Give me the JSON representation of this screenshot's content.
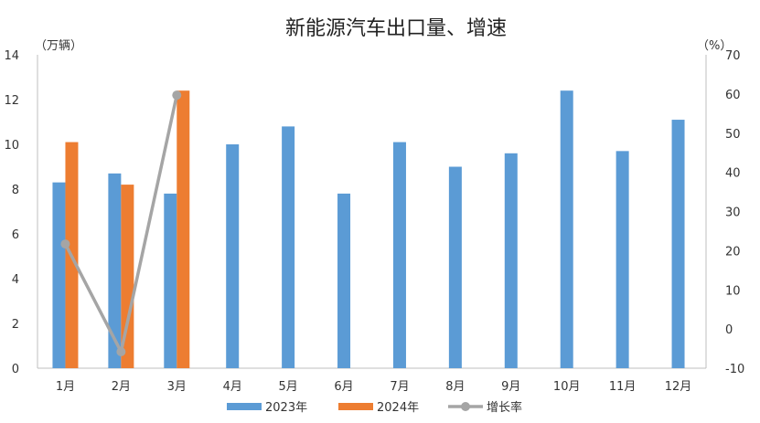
{
  "chart_data": {
    "type": "bar",
    "title": "新能源汽车出口量、增速",
    "y_left_unit": "（万辆）",
    "y_right_unit": "（%）",
    "categories": [
      "1月",
      "2月",
      "3月",
      "4月",
      "5月",
      "6月",
      "7月",
      "8月",
      "9月",
      "10月",
      "11月",
      "12月"
    ],
    "series": [
      {
        "name": "2023年",
        "type": "bar",
        "axis": "left",
        "color": "#5b9bd5",
        "values": [
          8.3,
          8.7,
          7.8,
          10.0,
          10.8,
          7.8,
          10.1,
          9.0,
          9.6,
          12.4,
          9.7,
          11.1
        ]
      },
      {
        "name": "2024年",
        "type": "bar",
        "axis": "left",
        "color": "#ed7d31",
        "values": [
          10.1,
          8.2,
          12.4,
          null,
          null,
          null,
          null,
          null,
          null,
          null,
          null,
          null
        ]
      },
      {
        "name": "增长率",
        "type": "line",
        "axis": "right",
        "color": "#a5a5a5",
        "values": [
          21.7,
          -5.8,
          59.7,
          null,
          null,
          null,
          null,
          null,
          null,
          null,
          null,
          null
        ]
      }
    ],
    "y_left": {
      "min": 0,
      "max": 14,
      "step": 2,
      "ticks": [
        "0",
        "2",
        "4",
        "6",
        "8",
        "10",
        "12",
        "14"
      ]
    },
    "y_right": {
      "min": -10,
      "max": 70,
      "step": 10,
      "ticks": [
        "-10",
        "0",
        "10",
        "20",
        "30",
        "40",
        "50",
        "60",
        "70"
      ],
      "negative_color": "#ff0000"
    },
    "legend": {
      "position": "bottom"
    },
    "grid": false
  }
}
